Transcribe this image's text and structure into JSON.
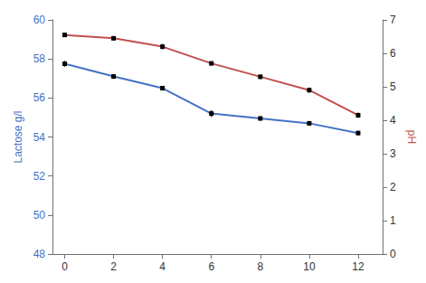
{
  "chart_data": {
    "type": "line",
    "x": [
      0,
      2,
      4,
      6,
      8,
      10,
      12
    ],
    "series": [
      {
        "color": "#4472C4",
        "values": [
          57.75,
          57.1,
          56.5,
          55.2,
          54.95,
          54.7,
          54.2
        ],
        "errors": [
          0.15,
          0.12,
          0.12,
          0.18,
          0.1,
          0.1,
          0.12
        ],
        "marker": "square"
      },
      {
        "color": "#C0504D",
        "values": [
          6.55,
          6.45,
          6.2,
          5.7,
          5.3,
          4.9,
          4.15
        ],
        "errors": [
          0.05,
          0.05,
          0.08,
          0.06,
          0.07,
          0.08,
          0.08
        ],
        "marker": "square",
        "axis": "y2"
      }
    ],
    "ylabel": "Lactose g/l",
    "y2label": "pH",
    "xlim": [
      -0.5,
      13.0
    ],
    "xticks": [
      0,
      2,
      4,
      6,
      8,
      10,
      12
    ],
    "ylim": [
      48,
      60
    ],
    "yticks": [
      48,
      50,
      52,
      54,
      56,
      58,
      60
    ],
    "y2lim": [
      0,
      7
    ],
    "y2ticks": [
      0,
      1,
      2,
      3,
      4,
      5,
      6,
      7
    ],
    "grid": false
  }
}
